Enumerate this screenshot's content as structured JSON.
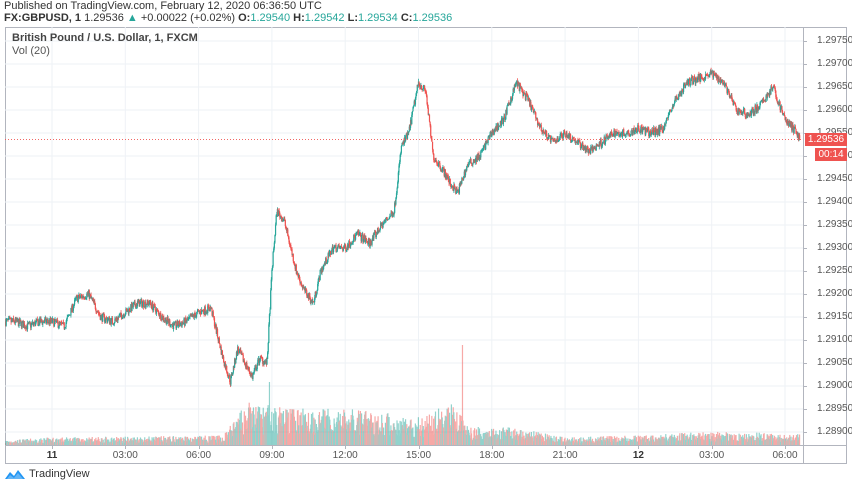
{
  "header": {
    "published": "Published on TradingView.com, February 12, 2020 06:36:50 UTC",
    "symbol": "FX:GBPUSD, 1",
    "last": "1.29536",
    "change_arrow": "▲",
    "change": "+0.00022 (+0.02%)",
    "o_label": "O:",
    "o": "1.29540",
    "h_label": "H:",
    "h": "1.29542",
    "l_label": "L:",
    "l": "1.29534",
    "c_label": "C:",
    "c": "1.29536"
  },
  "pane": {
    "series_title": "British Pound / U.S. Dollar, 1, FXCM",
    "volume_title": "Vol (20)"
  },
  "price_tag": {
    "value": "1.29536",
    "countdown": "00:14",
    "color": "#ef5350"
  },
  "footer": {
    "brand": "TradingView"
  },
  "colors": {
    "up": "#26a69a",
    "down": "#ef5350",
    "grid": "#eef2f6",
    "axis": "#b2b5be"
  },
  "chart_data": {
    "type": "candlestick",
    "title": "British Pound / U.S. Dollar, 1, FXCM",
    "interval": "1 minute",
    "xlabel": "",
    "ylabel": "",
    "x_tick_labels": [
      "11",
      "03:00",
      "06:00",
      "09:00",
      "12:00",
      "15:00",
      "18:00",
      "21:00",
      "12",
      "03:00",
      "06:00"
    ],
    "x_tick_hours": [
      0,
      3,
      6,
      9,
      12,
      15,
      18,
      21,
      24,
      27,
      30
    ],
    "y_tick_labels": [
      "1.29750",
      "1.29700",
      "1.29650",
      "1.29600",
      "1.29550",
      "1.29500",
      "1.29450",
      "1.29400",
      "1.29350",
      "1.29300",
      "1.29250",
      "1.29200",
      "1.29150",
      "1.29100",
      "1.29050",
      "1.29000",
      "1.28950",
      "1.28900"
    ],
    "ylim": [
      1.2887,
      1.2978
    ],
    "grid": true,
    "last_price": 1.29536,
    "price_path": {
      "hours": [
        -1.9,
        -1.5,
        -1.0,
        -0.5,
        0.0,
        0.5,
        1.0,
        1.5,
        2.0,
        2.5,
        3.0,
        3.5,
        4.0,
        4.5,
        5.0,
        5.5,
        6.0,
        6.5,
        7.0,
        7.3,
        7.6,
        7.9,
        8.2,
        8.5,
        8.8,
        9.0,
        9.2,
        9.5,
        10.0,
        10.3,
        10.7,
        11.0,
        11.5,
        12.0,
        12.5,
        13.0,
        13.5,
        14.0,
        14.3,
        14.6,
        15.0,
        15.3,
        15.6,
        16.0,
        16.3,
        16.6,
        17.0,
        17.5,
        18.0,
        18.5,
        19.0,
        19.5,
        20.0,
        20.5,
        21.0,
        21.5,
        22.0,
        22.5,
        23.0,
        23.5,
        24.0,
        24.5,
        25.0,
        25.5,
        26.0,
        26.5,
        27.0,
        27.5,
        28.0,
        28.5,
        29.0,
        29.5,
        30.0,
        30.5,
        30.6
      ],
      "prices": [
        1.2914,
        1.2914,
        1.2913,
        1.2914,
        1.2914,
        1.2913,
        1.2919,
        1.292,
        1.2915,
        1.2914,
        1.2916,
        1.2918,
        1.2918,
        1.2915,
        1.2913,
        1.2914,
        1.2916,
        1.2917,
        1.2906,
        1.2901,
        1.2908,
        1.2905,
        1.2902,
        1.2906,
        1.2905,
        1.2925,
        1.2938,
        1.2936,
        1.2925,
        1.2921,
        1.2918,
        1.2925,
        1.293,
        1.293,
        1.2933,
        1.2931,
        1.2935,
        1.2938,
        1.2952,
        1.2955,
        1.2966,
        1.2964,
        1.295,
        1.2947,
        1.2944,
        1.2942,
        1.2948,
        1.295,
        1.2955,
        1.2958,
        1.2966,
        1.2962,
        1.2956,
        1.2953,
        1.2955,
        1.2953,
        1.2951,
        1.2953,
        1.2955,
        1.2955,
        1.2956,
        1.2955,
        1.2956,
        1.2962,
        1.2966,
        1.2967,
        1.2968,
        1.2966,
        1.296,
        1.2959,
        1.2961,
        1.2965,
        1.2958,
        1.2955,
        1.29536
      ]
    },
    "volume_profile": {
      "hours": [
        -2,
        0,
        7.0,
        8.0,
        9.5,
        12.0,
        15.0,
        16.5,
        17.0,
        19.0,
        21.0,
        24.0,
        27.0,
        30.6
      ],
      "relative_height": [
        0.05,
        0.08,
        0.1,
        0.45,
        0.4,
        0.38,
        0.3,
        0.45,
        0.2,
        0.18,
        0.08,
        0.1,
        0.14,
        0.12
      ]
    }
  }
}
